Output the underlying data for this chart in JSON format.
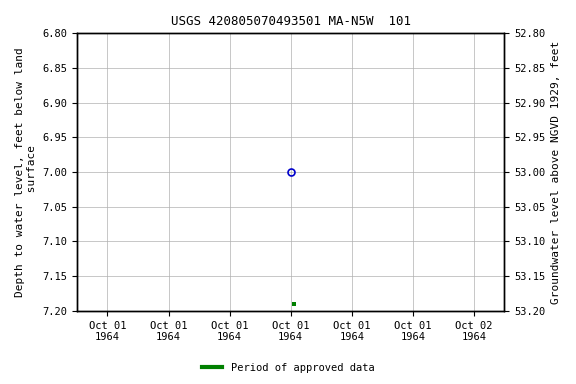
{
  "title": "USGS 420805070493501 MA-N5W  101",
  "ylabel_left": "Depth to water level, feet below land\n surface",
  "ylabel_right": "Groundwater level above NGVD 1929, feet",
  "ylim_left": [
    6.8,
    7.2
  ],
  "ylim_right": [
    52.8,
    53.2
  ],
  "yticks_left": [
    6.8,
    6.85,
    6.9,
    6.95,
    7.0,
    7.05,
    7.1,
    7.15,
    7.2
  ],
  "yticks_right": [
    53.2,
    53.15,
    53.1,
    53.05,
    53.0,
    52.95,
    52.9,
    52.85,
    52.8
  ],
  "point_open_x": 3.0,
  "point_open_y": 7.0,
  "point_filled_x": 3.05,
  "point_filled_y": 7.19,
  "open_point_color": "#0000cc",
  "filled_point_color": "#008000",
  "background_color": "#ffffff",
  "grid_color": "#b0b0b0",
  "title_fontsize": 9,
  "axis_label_fontsize": 8,
  "tick_label_fontsize": 7.5,
  "legend_label": "Period of approved data",
  "legend_color": "#008000",
  "x_tick_labels": [
    "Oct 01\n1964",
    "Oct 01\n1964",
    "Oct 01\n1964",
    "Oct 01\n1964",
    "Oct 01\n1964",
    "Oct 01\n1964",
    "Oct 02\n1964"
  ],
  "x_positions": [
    0,
    1,
    2,
    3,
    4,
    5,
    6
  ],
  "xlim": [
    -0.5,
    6.5
  ]
}
